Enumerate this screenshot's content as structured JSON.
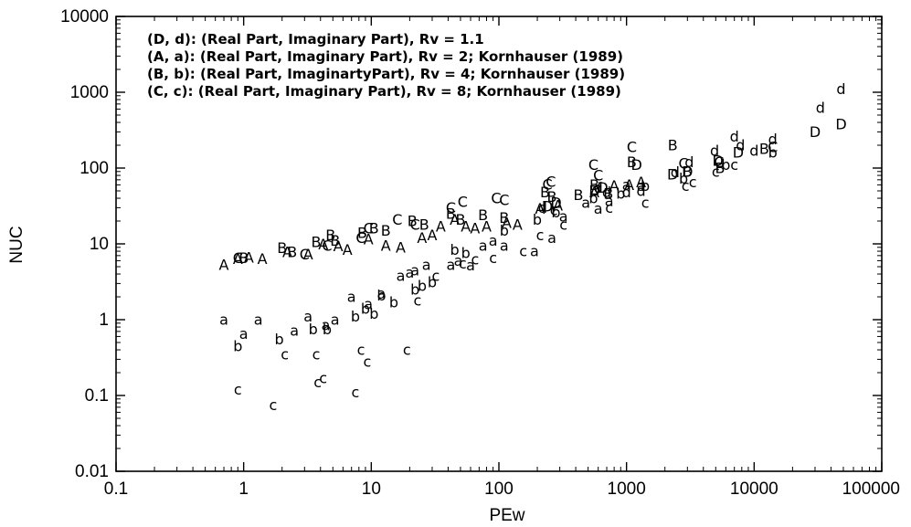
{
  "chart_data": {
    "type": "scatter",
    "xlabel": "PEw",
    "ylabel": "NUC",
    "xscale": "log",
    "yscale": "log",
    "xlim": [
      0.1,
      100000
    ],
    "ylim": [
      0.01,
      10000
    ],
    "xticks": [
      "0.1",
      "1",
      "10",
      "100",
      "1000",
      "10000",
      "100000"
    ],
    "yticks": [
      "0.01",
      "0.1",
      "1",
      "10",
      "100",
      "1000",
      "10000"
    ],
    "grid": false,
    "legend_position": "top-left",
    "legend": [
      "(D, d): (Real Part,  Imaginary Part),  Rv = 1.1",
      "(A, a): (Real Part,  Imaginary Part),  Rv = 2; Kornhauser (1989)",
      "(B, b): (Real Part,  ImaginartyPart),  Rv = 4; Kornhauser (1989)",
      "(C, c): (Real Part,  Imaginary Part),  Rv = 8; Kornhauser (1989)"
    ],
    "series": [
      {
        "marker": "A",
        "points": [
          [
            0.7,
            5.3
          ],
          [
            0.9,
            6.3
          ],
          [
            1.1,
            6.6
          ],
          [
            1.4,
            6.3
          ],
          [
            2.2,
            7.8
          ],
          [
            3.2,
            7.3
          ],
          [
            4.2,
            9.8
          ],
          [
            5.5,
            9.3
          ],
          [
            6.5,
            8.4
          ],
          [
            9.5,
            11.5
          ],
          [
            13,
            9.5
          ],
          [
            17,
            9.0
          ],
          [
            25,
            12
          ],
          [
            30,
            13
          ],
          [
            35,
            17
          ],
          [
            45,
            21
          ],
          [
            55,
            17
          ],
          [
            65,
            16
          ],
          [
            80,
            17
          ],
          [
            115,
            19
          ],
          [
            140,
            18
          ],
          [
            210,
            29
          ],
          [
            290,
            32
          ],
          [
            560,
            48
          ],
          [
            800,
            58
          ],
          [
            1050,
            60
          ],
          [
            1300,
            65
          ]
        ]
      },
      {
        "marker": "a",
        "points": [
          [
            0.7,
            1.0
          ],
          [
            1.0,
            0.65
          ],
          [
            1.3,
            1.0
          ],
          [
            2.5,
            0.72
          ],
          [
            3.2,
            1.1
          ],
          [
            4.4,
            0.85
          ],
          [
            5.2,
            1.0
          ],
          [
            7.0,
            2.0
          ],
          [
            9.5,
            1.6
          ],
          [
            12,
            2.2
          ],
          [
            17,
            3.8
          ],
          [
            20,
            4.2
          ],
          [
            22,
            4.5
          ],
          [
            27,
            5.3
          ],
          [
            42,
            5.3
          ],
          [
            48,
            6.0
          ],
          [
            60,
            5.2
          ],
          [
            75,
            9.5
          ],
          [
            90,
            11
          ],
          [
            110,
            9.5
          ],
          [
            190,
            8
          ],
          [
            260,
            12
          ],
          [
            320,
            23
          ],
          [
            480,
            35
          ],
          [
            600,
            29
          ],
          [
            730,
            37
          ],
          [
            1000,
            60
          ],
          [
            1300,
            58
          ]
        ]
      },
      {
        "marker": "B",
        "points": [
          [
            1.0,
            6.5
          ],
          [
            2.0,
            8.8
          ],
          [
            2.4,
            7.8
          ],
          [
            3.7,
            10.5
          ],
          [
            4.8,
            13
          ],
          [
            5.2,
            11
          ],
          [
            8.5,
            14
          ],
          [
            10.5,
            16
          ],
          [
            13,
            15
          ],
          [
            21,
            20
          ],
          [
            26,
            18
          ],
          [
            42,
            25
          ],
          [
            50,
            21
          ],
          [
            75,
            24
          ],
          [
            110,
            22
          ],
          [
            230,
            48
          ],
          [
            260,
            42
          ],
          [
            420,
            44
          ],
          [
            560,
            60
          ],
          [
            720,
            46
          ],
          [
            1100,
            120
          ],
          [
            2300,
            200
          ],
          [
            3000,
            90
          ],
          [
            5400,
            100
          ],
          [
            12000,
            180
          ]
        ]
      },
      {
        "marker": "b",
        "points": [
          [
            0.9,
            0.45
          ],
          [
            1.9,
            0.55
          ],
          [
            3.5,
            0.75
          ],
          [
            4.5,
            0.75
          ],
          [
            7.5,
            1.1
          ],
          [
            9.0,
            1.4
          ],
          [
            10.5,
            1.2
          ],
          [
            12,
            2.1
          ],
          [
            15,
            1.7
          ],
          [
            22,
            2.5
          ],
          [
            25,
            2.8
          ],
          [
            30,
            3.1
          ],
          [
            45,
            8.3
          ],
          [
            55,
            7.6
          ],
          [
            110,
            15
          ],
          [
            200,
            21
          ],
          [
            280,
            26
          ],
          [
            550,
            40
          ],
          [
            900,
            46
          ],
          [
            1400,
            58
          ],
          [
            2800,
            73
          ],
          [
            6000,
            110
          ],
          [
            14000,
            160
          ]
        ]
      },
      {
        "marker": "C",
        "points": [
          [
            0.9,
            6.5
          ],
          [
            3.0,
            7.3
          ],
          [
            4.5,
            9.5
          ],
          [
            8.3,
            12
          ],
          [
            9.5,
            16
          ],
          [
            16,
            21
          ],
          [
            22,
            18
          ],
          [
            42,
            30
          ],
          [
            52,
            36
          ],
          [
            95,
            40
          ],
          [
            110,
            38
          ],
          [
            240,
            61
          ],
          [
            255,
            66
          ],
          [
            550,
            110
          ],
          [
            600,
            80
          ],
          [
            1100,
            190
          ],
          [
            2800,
            115
          ],
          [
            5300,
            120
          ],
          [
            14000,
            190
          ]
        ]
      },
      {
        "marker": "c",
        "points": [
          [
            0.9,
            0.12
          ],
          [
            1.7,
            0.075
          ],
          [
            2.1,
            0.35
          ],
          [
            3.7,
            0.35
          ],
          [
            3.8,
            0.15
          ],
          [
            4.2,
            0.17
          ],
          [
            7.5,
            0.11
          ],
          [
            8.3,
            0.4
          ],
          [
            9.3,
            0.28
          ],
          [
            19,
            0.4
          ],
          [
            23,
            1.8
          ],
          [
            32,
            3.8
          ],
          [
            52,
            5.5
          ],
          [
            65,
            6.2
          ],
          [
            90,
            6.5
          ],
          [
            155,
            8
          ],
          [
            210,
            13
          ],
          [
            270,
            28
          ],
          [
            320,
            18
          ],
          [
            730,
            30
          ],
          [
            1400,
            35
          ],
          [
            2900,
            58
          ],
          [
            3300,
            65
          ],
          [
            5000,
            90
          ],
          [
            7000,
            110
          ]
        ]
      },
      {
        "marker": "D",
        "points": [
          [
            240,
            31
          ],
          [
            280,
            35
          ],
          [
            560,
            50
          ],
          [
            650,
            55
          ],
          [
            1200,
            110
          ],
          [
            2300,
            82
          ],
          [
            3000,
            90
          ],
          [
            5200,
            125
          ],
          [
            7500,
            160
          ],
          [
            30000,
            300
          ],
          [
            48000,
            380
          ]
        ]
      },
      {
        "marker": "d",
        "points": [
          [
            220,
            30
          ],
          [
            600,
            55
          ],
          [
            700,
            48
          ],
          [
            1000,
            48
          ],
          [
            1300,
            50
          ],
          [
            2400,
            88
          ],
          [
            3100,
            120
          ],
          [
            4900,
            170
          ],
          [
            7000,
            260
          ],
          [
            7800,
            200
          ],
          [
            10000,
            170
          ],
          [
            14000,
            240
          ],
          [
            33000,
            620
          ],
          [
            48000,
            1100
          ]
        ]
      }
    ]
  }
}
